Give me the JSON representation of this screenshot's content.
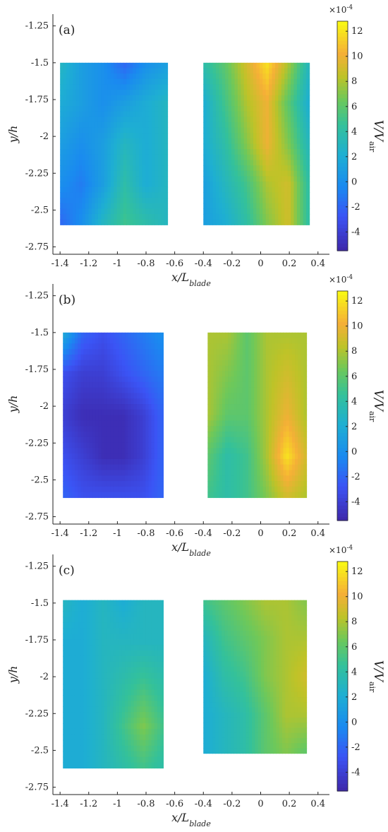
{
  "chart_data": [
    {
      "type": "heatmap",
      "panel_label": "(a)",
      "xlabel": "x/L_blade",
      "ylabel": "y/h",
      "xlim": [
        -1.45,
        0.48
      ],
      "ylim": [
        -2.8,
        -1.17
      ],
      "x_ticks": [
        "-1.4",
        "-1.2",
        "-1",
        "-0.8",
        "-0.6",
        "-0.4",
        "-0.2",
        "0",
        "0.2",
        "0.4"
      ],
      "y_ticks": [
        "-1.25",
        "-1.5",
        "-1.75",
        "-2",
        "-2.25",
        "-2.5",
        "-2.75"
      ],
      "colorbar": {
        "label": "V/V_air",
        "exponent": "×10^-4",
        "min": -5.5,
        "max": 12.8,
        "ticks": [
          "12",
          "10",
          "8",
          "6",
          "4",
          "2",
          "0",
          "-2",
          "-4"
        ]
      },
      "regions": [
        {
          "name": "left",
          "x_range": [
            -1.4,
            -0.65
          ],
          "y_range": [
            -2.6,
            -1.5
          ],
          "grid": [
            [
              3,
              1,
              0,
              -2,
              0,
              1
            ],
            [
              2,
              1,
              0,
              1,
              2,
              3
            ],
            [
              1,
              0,
              1,
              3,
              2,
              3
            ],
            [
              0,
              -1,
              1,
              4,
              2,
              3
            ],
            [
              -2,
              0,
              3,
              5,
              4,
              3
            ]
          ]
        },
        {
          "name": "right",
          "x_range": [
            -0.4,
            0.34
          ],
          "y_range": [
            -2.6,
            -1.5
          ],
          "grid": [
            [
              4,
              6,
              9,
              12,
              8,
              3
            ],
            [
              2,
              5,
              8,
              10,
              6,
              2
            ],
            [
              2,
              4,
              7,
              10,
              7,
              3
            ],
            [
              1,
              3,
              5,
              8,
              9,
              4
            ],
            [
              1,
              2,
              4,
              7,
              9,
              4
            ]
          ]
        }
      ]
    },
    {
      "type": "heatmap",
      "panel_label": "(b)",
      "xlabel": "x/L_blade",
      "ylabel": "y/h",
      "xlim": [
        -1.45,
        0.48
      ],
      "ylim": [
        -2.8,
        -1.17
      ],
      "x_ticks": [
        "-1.4",
        "-1.2",
        "-1",
        "-0.8",
        "-0.6",
        "-0.4",
        "-0.2",
        "0",
        "0.2",
        "0.4"
      ],
      "y_ticks": [
        "-1.25",
        "-1.5",
        "-1.75",
        "-2",
        "-2.25",
        "-2.5",
        "-2.75"
      ],
      "colorbar": {
        "label": "V/V_air",
        "exponent": "×10^-4",
        "min": -5.5,
        "max": 12.8,
        "ticks": [
          "12",
          "10",
          "8",
          "6",
          "4",
          "2",
          "0",
          "-2",
          "-4"
        ]
      },
      "regions": [
        {
          "name": "left",
          "x_range": [
            -1.38,
            -0.68
          ],
          "y_range": [
            -2.62,
            -1.5
          ],
          "grid": [
            [
              2,
              -2,
              -3,
              -2,
              -1,
              0
            ],
            [
              -3,
              -4,
              -4,
              -3,
              -2,
              -1
            ],
            [
              -4,
              -5,
              -5,
              -5,
              -4,
              -2
            ],
            [
              -3,
              -4,
              -5,
              -5,
              -4,
              -2
            ],
            [
              -2,
              -3,
              -3,
              -3,
              -3,
              -2
            ]
          ]
        },
        {
          "name": "right",
          "x_range": [
            -0.37,
            0.32
          ],
          "y_range": [
            -2.62,
            -1.5
          ],
          "grid": [
            [
              8,
              8,
              6,
              8,
              8,
              8
            ],
            [
              8,
              7,
              6,
              8,
              9,
              8
            ],
            [
              8,
              6,
              6,
              8,
              10,
              8
            ],
            [
              6,
              4,
              5,
              8,
              12,
              9
            ],
            [
              5,
              4,
              5,
              7,
              9,
              8
            ]
          ]
        }
      ]
    },
    {
      "type": "heatmap",
      "panel_label": "(c)",
      "xlabel": "x/L_blade",
      "ylabel": "y/h",
      "xlim": [
        -1.45,
        0.48
      ],
      "ylim": [
        -2.8,
        -1.17
      ],
      "x_ticks": [
        "-1.4",
        "-1.2",
        "-1",
        "-0.8",
        "-0.6",
        "-0.4",
        "-0.2",
        "0",
        "0.2",
        "0.4"
      ],
      "y_ticks": [
        "-1.25",
        "-1.5",
        "-1.75",
        "-2",
        "-2.25",
        "-2.5",
        "-2.75"
      ],
      "colorbar": {
        "label": "V/V_air",
        "exponent": "×10^-4",
        "min": -5.5,
        "max": 12.8,
        "ticks": [
          "12",
          "10",
          "8",
          "6",
          "4",
          "2",
          "0",
          "-2",
          "-4"
        ]
      },
      "regions": [
        {
          "name": "left",
          "x_range": [
            -1.38,
            -0.68
          ],
          "y_range": [
            -2.62,
            -1.48
          ],
          "grid": [
            [
              3,
              2,
              3,
              2,
              3,
              3
            ],
            [
              2,
              2,
              3,
              3,
              3,
              3
            ],
            [
              2,
              2,
              3,
              4,
              5,
              4
            ],
            [
              2,
              2,
              3,
              5,
              7,
              5
            ],
            [
              2,
              2,
              3,
              4,
              5,
              4
            ]
          ]
        },
        {
          "name": "right",
          "x_range": [
            -0.4,
            0.32
          ],
          "y_range": [
            -2.52,
            -1.48
          ],
          "grid": [
            [
              5,
              6,
              7,
              8,
              8,
              7
            ],
            [
              3,
              5,
              6,
              7,
              8,
              8
            ],
            [
              2,
              4,
              5,
              7,
              8,
              9
            ],
            [
              2,
              3,
              4,
              6,
              8,
              8
            ],
            [
              2,
              3,
              4,
              6,
              7,
              6
            ]
          ]
        }
      ]
    }
  ]
}
